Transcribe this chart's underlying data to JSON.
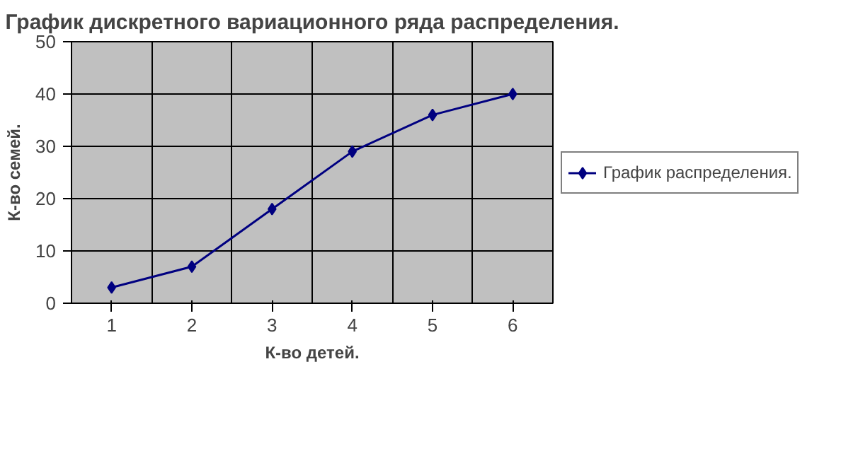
{
  "chart_data": {
    "type": "line",
    "title": "График дискретного вариационного ряда распределения.",
    "xlabel": "К-во детей.",
    "ylabel": "К-во семей.",
    "categories": [
      "1",
      "2",
      "3",
      "4",
      "5",
      "6"
    ],
    "series": [
      {
        "name": "График распределения.",
        "color": "#000080",
        "values": [
          3,
          7,
          18,
          29,
          36,
          40
        ]
      }
    ],
    "ylim": [
      0,
      50
    ],
    "yticks": [
      0,
      10,
      20,
      30,
      40,
      50
    ],
    "grid": true,
    "legend": "right",
    "marker": "diamond",
    "line_style": "solid"
  }
}
